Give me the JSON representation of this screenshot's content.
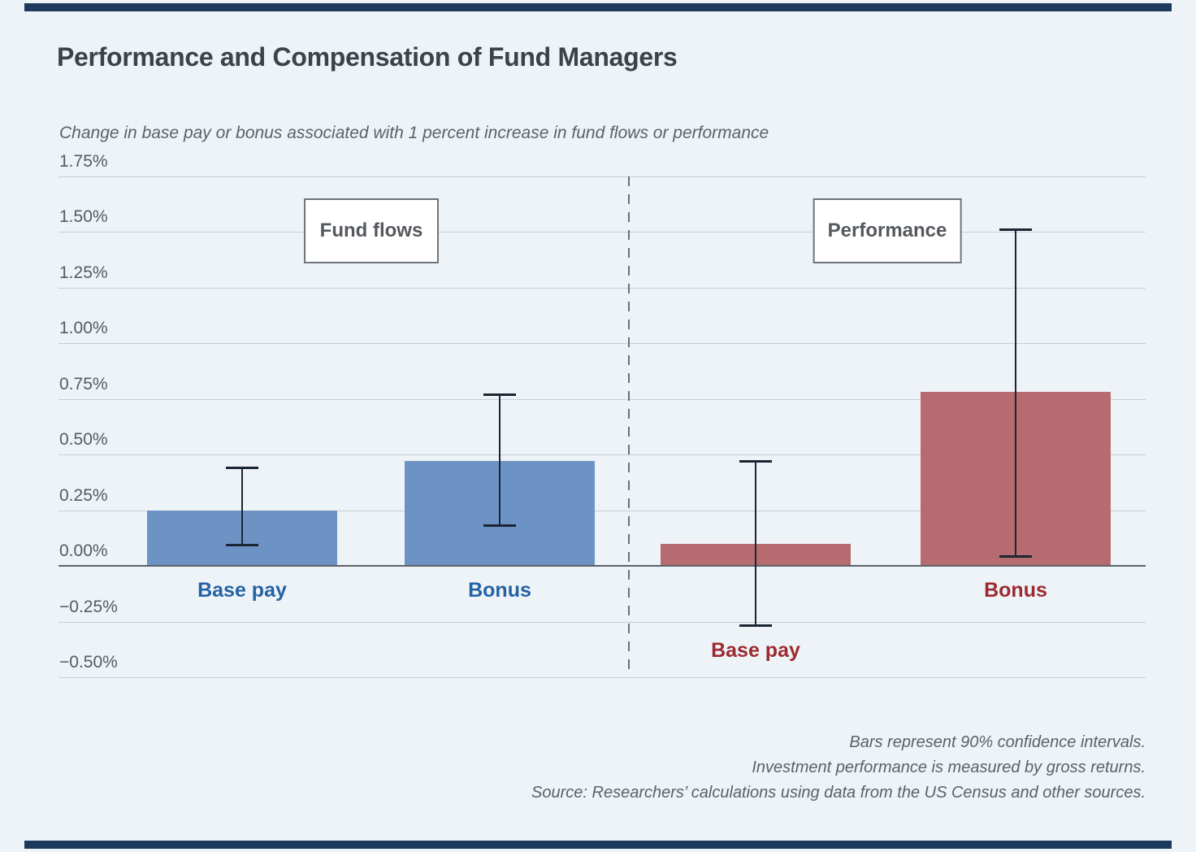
{
  "page": {
    "background_color": "#eef3f8",
    "accent_bar_color": "#1d3a5c"
  },
  "chart_data": {
    "type": "bar",
    "title": "Performance and Compensation of Fund Managers",
    "subtitle": "Change in base pay or bonus associated with 1 percent increase in fund flows or performance",
    "xlabel": "",
    "ylabel": "",
    "ylim": [
      -0.5,
      1.75
    ],
    "grid": true,
    "unit": "percent",
    "error_bar_meaning": "90% confidence intervals",
    "yticks": [
      {
        "label": "1.75%",
        "value": 1.75
      },
      {
        "label": "1.50%",
        "value": 1.5
      },
      {
        "label": "1.25%",
        "value": 1.25
      },
      {
        "label": "1.00%",
        "value": 1.0
      },
      {
        "label": "0.75%",
        "value": 0.75
      },
      {
        "label": "0.50%",
        "value": 0.5
      },
      {
        "label": "0.25%",
        "value": 0.25
      },
      {
        "label": "0.00%",
        "value": 0.0
      },
      {
        "label": "−0.25%",
        "value": -0.25
      },
      {
        "label": "−0.50%",
        "value": -0.5
      }
    ],
    "groups": [
      {
        "label": "Fund flows"
      },
      {
        "label": "Performance"
      }
    ],
    "bars": [
      {
        "group": "Fund flows",
        "category": "Base pay",
        "value": 0.25,
        "ci_low": 0.09,
        "ci_high": 0.44,
        "color": "#6d92c4",
        "label_color": "#2562a4"
      },
      {
        "group": "Fund flows",
        "category": "Bonus",
        "value": 0.47,
        "ci_low": 0.18,
        "ci_high": 0.77,
        "color": "#6d92c4",
        "label_color": "#2562a4"
      },
      {
        "group": "Performance",
        "category": "Base pay",
        "value": 0.1,
        "ci_low": -0.27,
        "ci_high": 0.47,
        "color": "#b56b6f",
        "label_color": "#9d2a30"
      },
      {
        "group": "Performance",
        "category": "Bonus",
        "value": 0.78,
        "ci_low": 0.04,
        "ci_high": 1.51,
        "color": "#b56b6f",
        "label_color": "#9d2a30"
      }
    ],
    "colors": {
      "fund_flows_bar": "#6d92c4",
      "performance_bar": "#b56b6f",
      "error_bar": "#1b2634",
      "gridline": "#c9ced4",
      "zero_line": "#5d636a"
    },
    "notes": [
      "Bars represent 90% confidence intervals.",
      "Investment performance is measured by gross returns.",
      "Source: Researchers’ calculations using data from the US Census and other sources."
    ]
  }
}
